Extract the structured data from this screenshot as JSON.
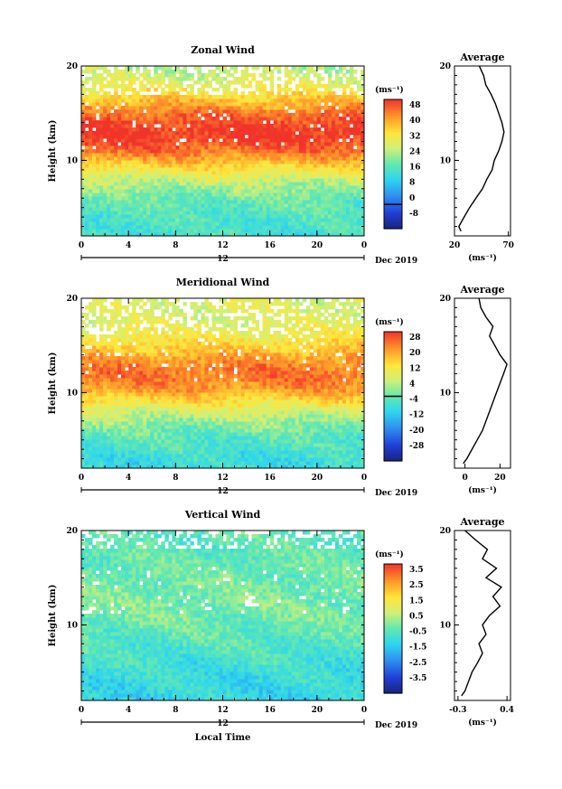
{
  "chart_data": [
    {
      "type": "heatmap",
      "title": "Zonal Wind",
      "ylabel": "Height (km)",
      "ylim": [
        2,
        20
      ],
      "y_ticks": [
        "20",
        "10"
      ],
      "xlim": [
        0,
        24
      ],
      "x_ticks": [
        "0",
        "4",
        "8",
        "12",
        "16",
        "20",
        "0"
      ],
      "day_label": "12",
      "month_label": "Dec 2019",
      "colorbar": {
        "unit": "(ms⁻¹)",
        "labels": [
          "48",
          "40",
          "32",
          "24",
          "16",
          "8",
          "0",
          "-8"
        ],
        "range": [
          -12,
          52
        ],
        "contour_value": 0
      },
      "field": {
        "jet_core_km": 13,
        "jet_halfwidth_km": 4.5,
        "jet_peak": 52,
        "surface_value": 16,
        "top_value": 24,
        "sparse_above_km": 17
      },
      "average_profile": {
        "title": "Average",
        "unit": "(ms⁻¹)",
        "xlim": [
          20,
          72
        ],
        "x_ticks": [
          "20",
          "70"
        ],
        "y_ticks": [
          "20",
          "10"
        ],
        "height_km": [
          2.5,
          3,
          4,
          5,
          6,
          7,
          8,
          9,
          10,
          11,
          12,
          13,
          14,
          15,
          16,
          17,
          18,
          19,
          20
        ],
        "values": [
          26,
          24,
          29,
          34,
          40,
          46,
          50,
          55,
          57,
          61,
          64,
          66,
          64,
          61,
          58,
          54,
          49,
          47,
          43
        ]
      }
    },
    {
      "type": "heatmap",
      "title": "Meridional Wind",
      "ylabel": "Height (km)",
      "ylim": [
        2,
        20
      ],
      "y_ticks": [
        "20",
        "10"
      ],
      "xlim": [
        0,
        24
      ],
      "x_ticks": [
        "0",
        "4",
        "8",
        "12",
        "16",
        "20",
        "0"
      ],
      "day_label": "12",
      "month_label": "Dec 2019",
      "colorbar": {
        "unit": "(ms⁻¹)",
        "labels": [
          "28",
          "20",
          "12",
          "4",
          "-4",
          "-12",
          "-20",
          "-28"
        ],
        "range": [
          -32,
          32
        ],
        "contour_value": 0
      },
      "field": {
        "jet_core_km": 12,
        "jet_halfwidth_km": 4,
        "jet_peak": 26,
        "surface_value": -6,
        "top_value": 10,
        "sparse_above_km": 16
      },
      "average_profile": {
        "title": "Average",
        "unit": "(ms⁻¹)",
        "xlim": [
          -6,
          26
        ],
        "x_ticks": [
          "0",
          "20"
        ],
        "y_ticks": [
          "20",
          "10"
        ],
        "height_km": [
          2.5,
          3,
          4,
          5,
          6,
          7,
          8,
          9,
          10,
          11,
          12,
          13,
          14,
          15,
          16,
          17,
          18,
          19,
          20
        ],
        "values": [
          -1,
          1,
          4,
          7,
          10,
          12,
          14,
          16,
          18,
          20,
          22,
          24,
          20,
          17,
          14,
          16,
          12,
          9,
          8
        ]
      }
    },
    {
      "type": "heatmap",
      "title": "Vertical Wind",
      "ylabel": "Height (km)",
      "ylim": [
        2,
        20
      ],
      "y_ticks": [
        "20",
        "10"
      ],
      "xlim": [
        0,
        24
      ],
      "x_ticks": [
        "0",
        "4",
        "8",
        "12",
        "16",
        "20",
        "0"
      ],
      "day_label": "12",
      "month_label": "Dec 2019",
      "xlabel": "Local Time",
      "colorbar": {
        "unit": "(ms⁻¹)",
        "labels": [
          "3.5",
          "2.5",
          "1.5",
          "0.5",
          "-0.5",
          "-1.5",
          "-2.5",
          "-3.5"
        ],
        "range": [
          -4,
          4
        ],
        "contour_value": null
      },
      "field": {
        "jet_core_km": 13,
        "jet_halfwidth_km": 6,
        "jet_peak": 0.2,
        "surface_value": -0.9,
        "top_value": -0.3,
        "sparse_above_km": 18
      },
      "average_profile": {
        "title": "Average",
        "unit": "(ms⁻¹)",
        "xlim": [
          -0.35,
          0.45
        ],
        "x_ticks": [
          "-0.3",
          "0.4"
        ],
        "y_ticks": [
          "20",
          "10"
        ],
        "height_km": [
          2.5,
          3,
          4,
          5,
          6,
          7,
          8,
          9,
          10,
          11,
          12,
          13,
          14,
          15,
          16,
          17,
          18,
          19,
          20
        ],
        "values": [
          -0.25,
          -0.2,
          -0.15,
          -0.1,
          -0.02,
          0.05,
          0.0,
          0.1,
          0.05,
          0.15,
          0.3,
          0.2,
          0.32,
          0.1,
          0.25,
          0.05,
          0.12,
          -0.05,
          -0.2
        ]
      }
    }
  ]
}
